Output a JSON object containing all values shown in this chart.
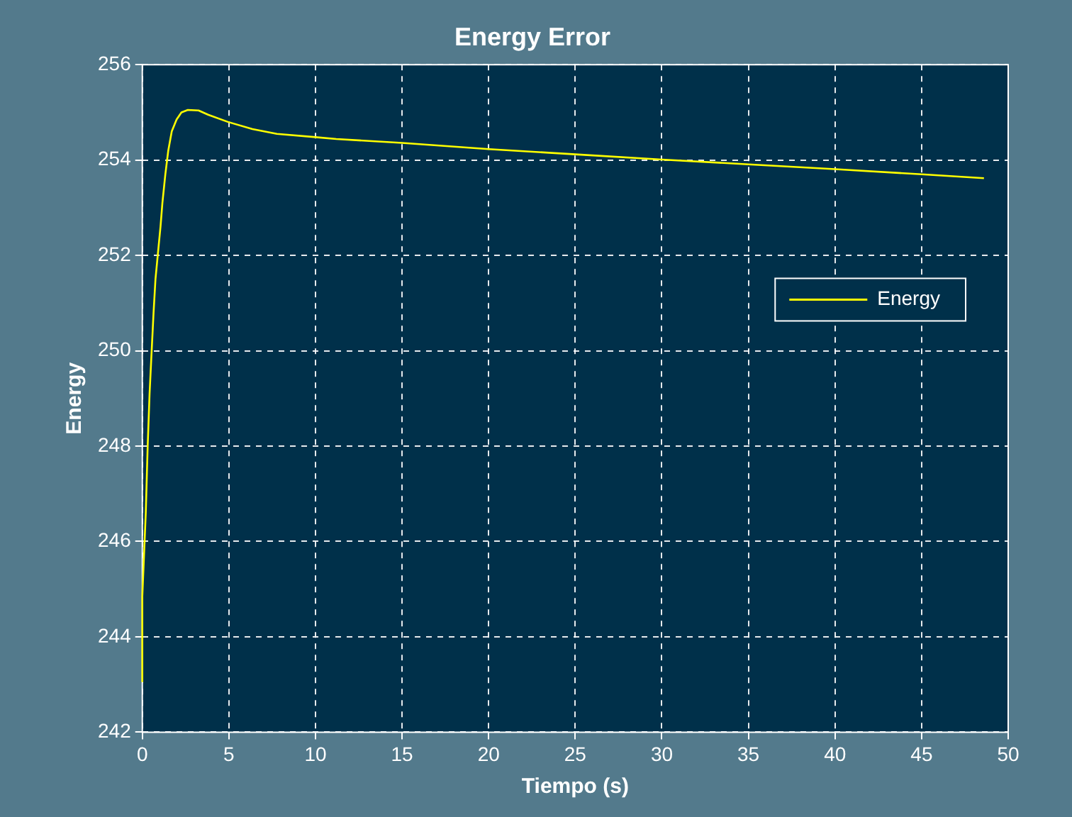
{
  "chart_data": {
    "type": "line",
    "title": "Energy Error",
    "xlabel": "Tiempo (s)",
    "ylabel": "Energy",
    "xlim": [
      0,
      50
    ],
    "xticks": [
      0,
      5,
      10,
      15,
      20,
      25,
      30,
      35,
      40,
      45,
      50
    ],
    "ylim": [
      242,
      256
    ],
    "yticks": [
      242,
      244,
      246,
      248,
      250,
      252,
      254,
      256
    ],
    "grid": true,
    "legend": "right",
    "marker": "none",
    "line_style": "solid",
    "series": [
      {
        "name": "Energy",
        "color": "#ffff00",
        "x": [
          0,
          0,
          0.2,
          0.31,
          0.42,
          0.54,
          0.65,
          0.76,
          0.93,
          1.05,
          1.16,
          1.33,
          1.5,
          1.7,
          1.98,
          2.26,
          2.63,
          3.25,
          3.8,
          4.94,
          6.36,
          7.77,
          10,
          11.2,
          15,
          20,
          25,
          30,
          35,
          40,
          45,
          48.6
        ],
        "values": [
          243.05,
          244.85,
          246.6,
          248.0,
          249.1,
          250.0,
          250.8,
          251.5,
          252.15,
          252.6,
          253.1,
          253.7,
          254.2,
          254.6,
          254.85,
          255.0,
          255.05,
          255.04,
          254.95,
          254.8,
          254.65,
          254.55,
          254.48,
          254.44,
          254.36,
          254.23,
          254.12,
          254.01,
          253.91,
          253.81,
          253.7,
          253.62
        ]
      }
    ]
  }
}
